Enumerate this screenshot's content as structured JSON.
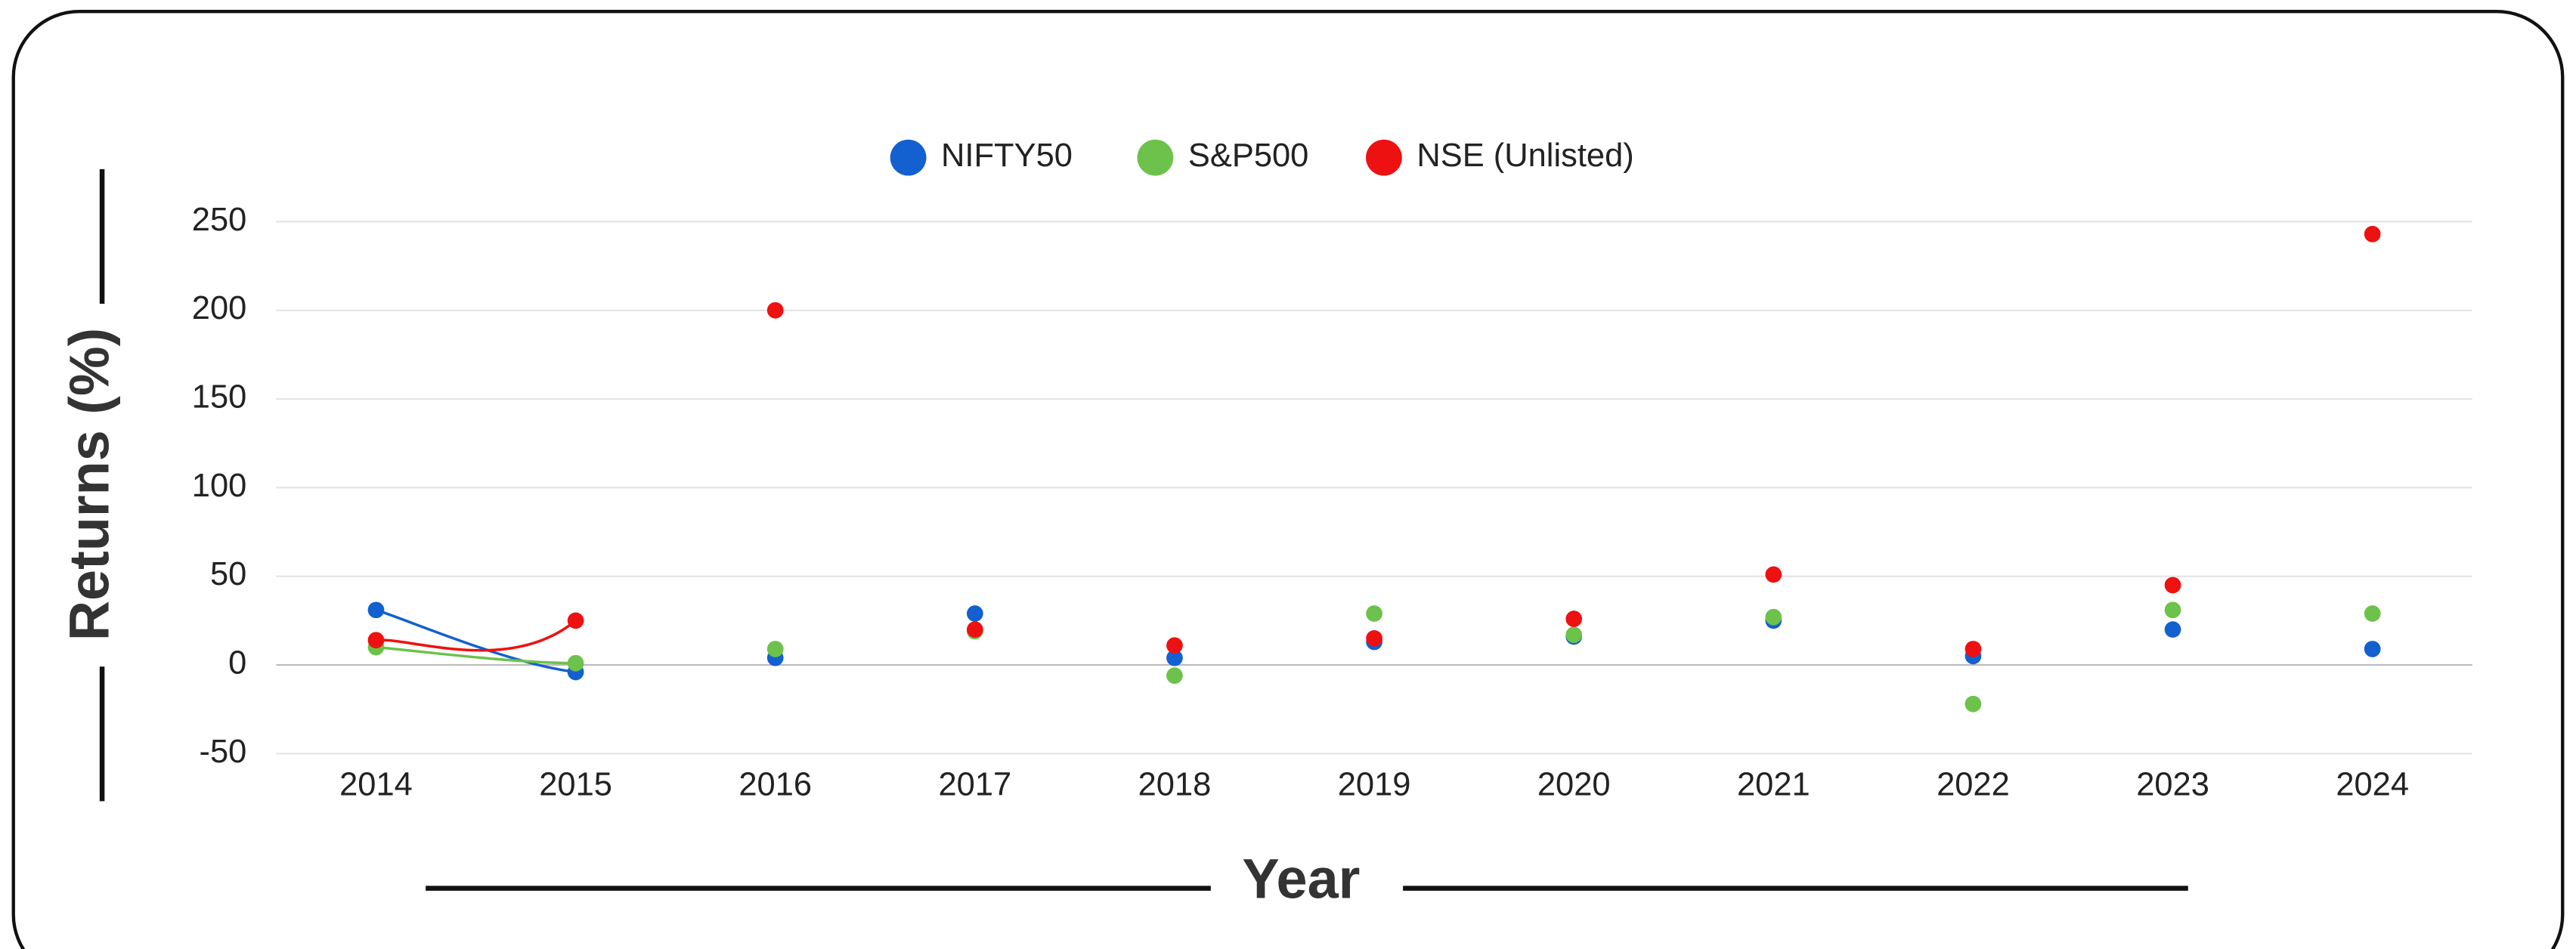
{
  "chart_data": {
    "type": "line",
    "y_label": "Returns (%)",
    "x_label": "Year",
    "categories": [
      "2014",
      "2015",
      "2016",
      "2017",
      "2018",
      "2019",
      "2020",
      "2021",
      "2022",
      "2023",
      "2024"
    ],
    "series": [
      {
        "name": "NIFTY50",
        "color": "#1360d0",
        "values": [
          31,
          -4,
          4,
          29,
          4,
          13,
          16,
          25,
          5,
          20,
          9
        ]
      },
      {
        "name": "S&P500",
        "color": "#6cc24a",
        "values": [
          10,
          1,
          9,
          19,
          -6,
          29,
          17,
          27,
          -22,
          31,
          29
        ]
      },
      {
        "name": "NSE (Unlisted)",
        "color": "#ee1111",
        "values": [
          14,
          25,
          200,
          20,
          11,
          15,
          26,
          51,
          9,
          45,
          243
        ]
      }
    ],
    "ylim": [
      -50,
      250
    ],
    "yticks": [
      -50,
      0,
      50,
      100,
      150,
      200,
      250
    ],
    "grid": true,
    "legend": "top",
    "smooth": true
  }
}
